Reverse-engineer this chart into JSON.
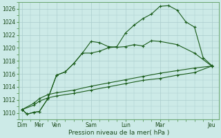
{
  "xlabel": "Pression niveau de la mer( hPa )",
  "bg_color": "#cceae7",
  "grid_color": "#aacccc",
  "line_color": "#1a5c1a",
  "ylim": [
    1009,
    1027
  ],
  "yticks": [
    1010,
    1012,
    1014,
    1016,
    1018,
    1020,
    1022,
    1024,
    1026
  ],
  "day_positions": [
    0,
    1,
    2,
    4,
    6,
    8,
    11
  ],
  "day_labels": [
    "Dim",
    "Mer",
    "Ven",
    "Sam",
    "Lun",
    "Mar",
    "Jeu"
  ],
  "xlim": [
    -0.2,
    11.4
  ],
  "line1_x": [
    0.0,
    0.3,
    0.7,
    1.0,
    1.5,
    2.0,
    2.5,
    3.0,
    3.5,
    4.0,
    4.5,
    5.0,
    5.5,
    6.0,
    6.5,
    7.0,
    7.5,
    8.0,
    9.0,
    10.0,
    11.0
  ],
  "line1_y": [
    1010.5,
    1009.8,
    1010.1,
    1010.2,
    1012.2,
    1015.8,
    1016.3,
    1017.6,
    1019.2,
    1021.0,
    1020.8,
    1020.2,
    1020.1,
    1020.2,
    1020.5,
    1020.3,
    1021.1,
    1021.0,
    1020.5,
    1019.2,
    1017.2
  ],
  "line2_x": [
    0.0,
    0.3,
    0.7,
    1.0,
    1.5,
    2.0,
    2.5,
    3.0,
    3.5,
    4.0,
    4.5,
    5.0,
    5.5,
    6.0,
    6.5,
    7.0,
    7.5,
    8.0,
    8.5,
    9.0,
    9.5,
    10.0,
    10.5,
    11.0
  ],
  "line2_y": [
    1010.5,
    1009.8,
    1010.1,
    1010.2,
    1012.2,
    1015.8,
    1016.3,
    1017.6,
    1019.2,
    1019.2,
    1019.5,
    1020.0,
    1020.2,
    1022.3,
    1023.5,
    1024.5,
    1025.2,
    1026.4,
    1026.5,
    1025.8,
    1024.0,
    1023.2,
    1018.5,
    1017.3
  ],
  "line3_x": [
    0.0,
    0.7,
    1.0,
    1.5,
    2.0,
    3.0,
    4.0,
    5.0,
    6.0,
    7.0,
    8.0,
    9.0,
    10.0,
    11.0
  ],
  "line3_y": [
    1010.5,
    1011.5,
    1012.2,
    1012.8,
    1013.1,
    1013.5,
    1014.1,
    1014.6,
    1015.1,
    1015.6,
    1016.1,
    1016.5,
    1016.9,
    1017.2
  ],
  "line4_x": [
    0.0,
    0.7,
    1.0,
    1.5,
    2.0,
    3.0,
    4.0,
    5.0,
    6.0,
    7.0,
    8.0,
    9.0,
    10.0,
    11.0
  ],
  "line4_y": [
    1010.5,
    1011.2,
    1011.8,
    1012.3,
    1012.6,
    1013.0,
    1013.5,
    1014.0,
    1014.5,
    1015.0,
    1015.3,
    1015.8,
    1016.2,
    1017.2
  ]
}
